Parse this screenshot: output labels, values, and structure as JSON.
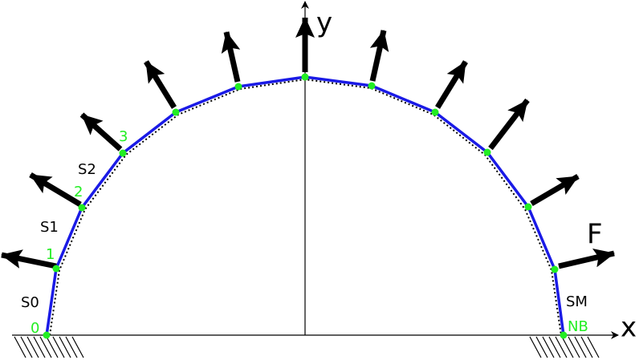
{
  "axes": {
    "x": "x",
    "y": "y"
  },
  "force_label": "F",
  "node_labels": [
    "0",
    "1",
    "2",
    "3",
    "NB"
  ],
  "segment_labels": [
    "S0",
    "S1",
    "S2",
    "SM"
  ]
}
